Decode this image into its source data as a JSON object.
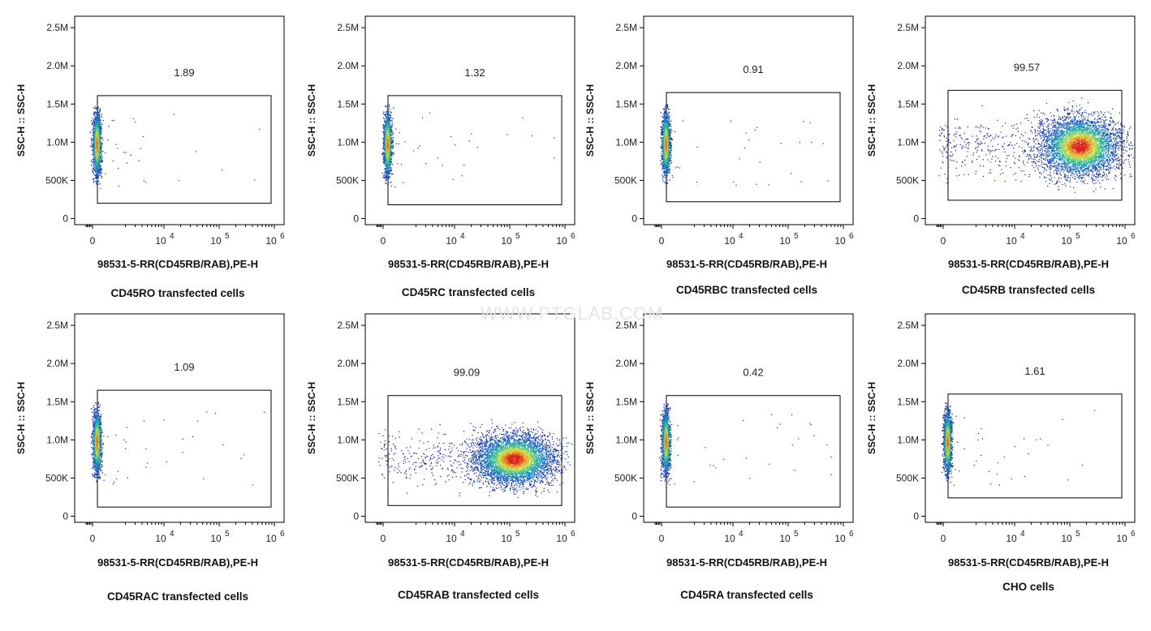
{
  "watermark": "WWW.PTGLAB.COM",
  "chart_data": [
    {
      "type": "scatter",
      "title": "",
      "caption": "CD45RO transfected cells",
      "xlabel": "98531-5-RR(CD45RB/RAB),PE-H",
      "ylabel": "SSC-H :: SSC-H",
      "yticks": [
        "2.5M",
        "2.0M",
        "1.5M",
        "1.0M",
        "500K",
        "0"
      ],
      "xticks": [
        "0",
        "10",
        "10",
        "10"
      ],
      "xtick_exponents": [
        "",
        "4",
        "5",
        "6"
      ],
      "gate_value": "1.89",
      "population": "negative",
      "gate": {
        "x": [
          300,
          1000000
        ],
        "y": [
          200000,
          1610000
        ]
      },
      "ylim": [
        -80000,
        2650000
      ]
    },
    {
      "type": "scatter",
      "title": "",
      "caption": "CD45RC transfected cells",
      "xlabel": "98531-5-RR(CD45RB/RAB),PE-H",
      "ylabel": "SSC-H :: SSC-H",
      "yticks": [
        "2.5M",
        "2.0M",
        "1.5M",
        "1.0M",
        "500K",
        "0"
      ],
      "xticks": [
        "0",
        "10",
        "10",
        "10"
      ],
      "xtick_exponents": [
        "",
        "4",
        "5",
        "6"
      ],
      "gate_value": "1.32",
      "population": "negative",
      "gate": {
        "x": [
          300,
          1000000
        ],
        "y": [
          180000,
          1610000
        ]
      },
      "ylim": [
        -80000,
        2650000
      ]
    },
    {
      "type": "scatter",
      "title": "",
      "caption": "CD45RBC transfected cells",
      "xlabel": "98531-5-RR(CD45RB/RAB),PE-H",
      "ylabel": "SSC-H :: SSC-H",
      "yticks": [
        "2.5M",
        "2.0M",
        "1.5M",
        "1.0M",
        "500K",
        "0"
      ],
      "xticks": [
        "0",
        "10",
        "10",
        "10"
      ],
      "xtick_exponents": [
        "",
        "4",
        "5",
        "6"
      ],
      "gate_value": "0.91",
      "population": "negative",
      "gate": {
        "x": [
          300,
          1000000
        ],
        "y": [
          220000,
          1650000
        ]
      },
      "ylim": [
        -80000,
        2650000
      ]
    },
    {
      "type": "scatter",
      "title": "",
      "caption": "CD45RB transfected cells",
      "xlabel": "98531-5-RR(CD45RB/RAB),PE-H",
      "ylabel": "SSC-H :: SSC-H",
      "yticks": [
        "2.5M",
        "2.0M",
        "1.5M",
        "1.0M",
        "500K",
        "0"
      ],
      "xticks": [
        "0",
        "10",
        "10",
        "10"
      ],
      "xtick_exponents": [
        "",
        "4",
        "5",
        "6"
      ],
      "gate_value": "99.57",
      "population": "positive",
      "gate": {
        "x": [
          300,
          1000000
        ],
        "y": [
          240000,
          1680000
        ]
      },
      "ylim": [
        -80000,
        2650000
      ]
    },
    {
      "type": "scatter",
      "title": "",
      "caption": "CD45RAC transfected cells",
      "xlabel": "98531-5-RR(CD45RB/RAB),PE-H",
      "ylabel": "SSC-H :: SSC-H",
      "yticks": [
        "2.5M",
        "2.0M",
        "1.5M",
        "1.0M",
        "500K",
        "0"
      ],
      "xticks": [
        "0",
        "10",
        "10",
        "10"
      ],
      "xtick_exponents": [
        "",
        "4",
        "5",
        "6"
      ],
      "gate_value": "1.09",
      "population": "negative",
      "gate": {
        "x": [
          300,
          1000000
        ],
        "y": [
          120000,
          1650000
        ]
      },
      "ylim": [
        -80000,
        2650000
      ]
    },
    {
      "type": "scatter",
      "title": "",
      "caption": "CD45RAB transfected cells",
      "xlabel": "98531-5-RR(CD45RB/RAB),PE-H",
      "ylabel": "SSC-H :: SSC-H",
      "yticks": [
        "2.5M",
        "2.0M",
        "1.5M",
        "1.0M",
        "500K",
        "0"
      ],
      "xticks": [
        "0",
        "10",
        "10",
        "10"
      ],
      "xtick_exponents": [
        "",
        "4",
        "5",
        "6"
      ],
      "gate_value": "99.09",
      "population": "positive",
      "gate": {
        "x": [
          300,
          1000000
        ],
        "y": [
          140000,
          1580000
        ]
      },
      "ylim": [
        -80000,
        2650000
      ]
    },
    {
      "type": "scatter",
      "title": "",
      "caption": "CD45RA transfected cells",
      "xlabel": "98531-5-RR(CD45RB/RAB),PE-H",
      "ylabel": "SSC-H :: SSC-H",
      "yticks": [
        "2.5M",
        "2.0M",
        "1.5M",
        "1.0M",
        "500K",
        "0"
      ],
      "xticks": [
        "0",
        "10",
        "10",
        "10"
      ],
      "xtick_exponents": [
        "",
        "4",
        "5",
        "6"
      ],
      "gate_value": "0.42",
      "population": "negative",
      "gate": {
        "x": [
          300,
          1000000
        ],
        "y": [
          120000,
          1580000
        ]
      },
      "ylim": [
        -80000,
        2650000
      ]
    },
    {
      "type": "scatter",
      "title": "",
      "caption": "CHO cells",
      "xlabel": "98531-5-RR(CD45RB/RAB),PE-H",
      "ylabel": "SSC-H :: SSC-H",
      "yticks": [
        "2.5M",
        "2.0M",
        "1.5M",
        "1.0M",
        "500K",
        "0"
      ],
      "xticks": [
        "0",
        "10",
        "10",
        "10"
      ],
      "xtick_exponents": [
        "",
        "4",
        "5",
        "6"
      ],
      "gate_value": "1.61",
      "population": "negative",
      "gate": {
        "x": [
          300,
          1000000
        ],
        "y": [
          240000,
          1600000
        ]
      },
      "ylim": [
        -80000,
        2650000
      ]
    }
  ]
}
